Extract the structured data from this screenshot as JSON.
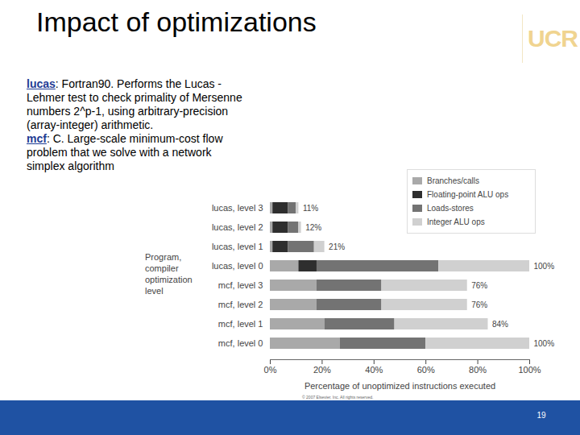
{
  "slide": {
    "title": "Impact of optimizations",
    "logo": "UCR",
    "description": [
      {
        "term": "lucas",
        "text": ": Fortran90. Performs the Lucas -Lehmer test to check primality of Mersenne numbers 2^p-1, using arbitrary-precision (array-integer) arithmetic."
      },
      {
        "term": "mcf",
        "text": ": C. Large-scale minimum-cost flow problem that we solve with a network simplex algorithm"
      }
    ],
    "copyright": "© 2007 Elsevier, Inc. All rights reserved.",
    "page": 19
  },
  "chart_data": {
    "type": "bar",
    "orientation": "horizontal",
    "stacked": true,
    "ylabel": "Program, compiler optimization level",
    "xlabel": "Percentage of unoptimized instructions executed",
    "categories": [
      "lucas, level 3",
      "lucas, level 2",
      "lucas, level 1",
      "lucas, level 0",
      "mcf, level 3",
      "mcf, level 2",
      "mcf, level 1",
      "mcf, level 0"
    ],
    "series": [
      {
        "name": "Branches/calls",
        "color": "#a9a9a9",
        "values": [
          1,
          1,
          1,
          11,
          18,
          18,
          21,
          27
        ]
      },
      {
        "name": "Floating-point ALU ops",
        "color": "#2e2e2e",
        "values": [
          6,
          6,
          6,
          7,
          0,
          0,
          0,
          0
        ]
      },
      {
        "name": "Loads-stores",
        "color": "#737373",
        "values": [
          3,
          4,
          10,
          47,
          25,
          25,
          27,
          33
        ]
      },
      {
        "name": "Integer ALU ops",
        "color": "#d0d0d0",
        "values": [
          1,
          1,
          4,
          35,
          33,
          33,
          36,
          40
        ]
      }
    ],
    "totals": {
      "values": [
        11,
        12,
        21,
        100,
        76,
        76,
        84,
        100
      ],
      "value_labels": [
        "11%",
        "12%",
        "21%",
        "100%",
        "76%",
        "76%",
        "84%",
        "100%"
      ]
    },
    "xlim": [
      0,
      100
    ],
    "xticks": [
      {
        "value": 0,
        "label": "0%"
      },
      {
        "value": 20,
        "label": "20%"
      },
      {
        "value": 40,
        "label": "40%"
      },
      {
        "value": 60,
        "label": "60%"
      },
      {
        "value": 80,
        "label": "80%"
      },
      {
        "value": 100,
        "label": "100%"
      }
    ],
    "legend": "upper right",
    "grid": false
  }
}
